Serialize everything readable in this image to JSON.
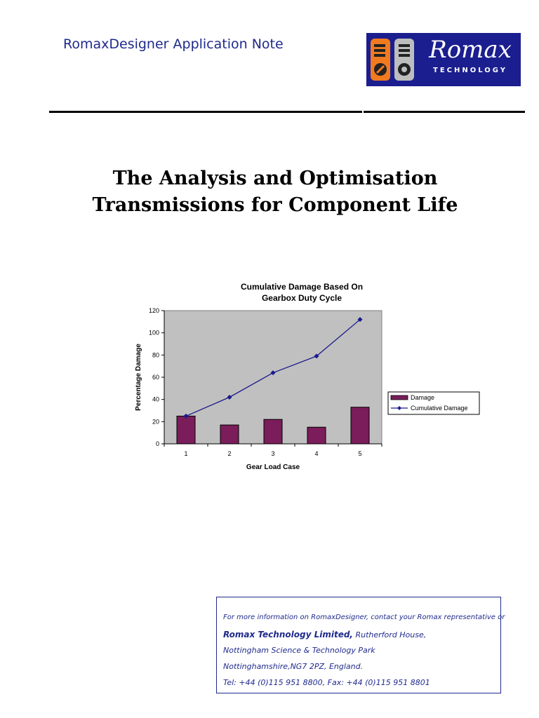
{
  "header": {
    "title": "RomaxDesigner Application Note",
    "logo": {
      "name": "Romax",
      "sub": "TECHNOLOGY",
      "color": "#1b1e8e"
    }
  },
  "doc": {
    "title_line1": "The Analysis and Optimisation",
    "title_line2": "Transmissions for Component Life"
  },
  "chart_data": {
    "type": "bar",
    "title_line1": "Cumulative Damage Based On",
    "title_line2": "Gearbox Duty Cycle",
    "xlabel": "Gear Load Case",
    "ylabel": "Percentage Damage",
    "categories": [
      "1",
      "2",
      "3",
      "4",
      "5"
    ],
    "ylim": [
      0,
      120
    ],
    "yticks": [
      0,
      20,
      40,
      60,
      80,
      100,
      120
    ],
    "series": [
      {
        "name": "Damage",
        "kind": "bar",
        "color": "#7a1d5a",
        "values": [
          25,
          17,
          22,
          15,
          33
        ]
      },
      {
        "name": "Cumulative Damage",
        "kind": "line",
        "color": "#1a1a8c",
        "values": [
          25,
          42,
          64,
          79,
          112
        ]
      }
    ],
    "plot_background": "#c0c0c0",
    "grid": false,
    "legend_position": "right"
  },
  "contact": {
    "line1": "For more information on RomaxDesigner, contact your Romax representative or",
    "company": "Romax Technology Limited,",
    "line2_rest": " Rutherford House,",
    "line3": "Nottingham Science & Technology Park",
    "line4": "Nottinghamshire,NG7 2PZ, England.",
    "line5": "Tel: +44 (0)115 951 8800, Fax: +44 (0)115 951 8801"
  }
}
